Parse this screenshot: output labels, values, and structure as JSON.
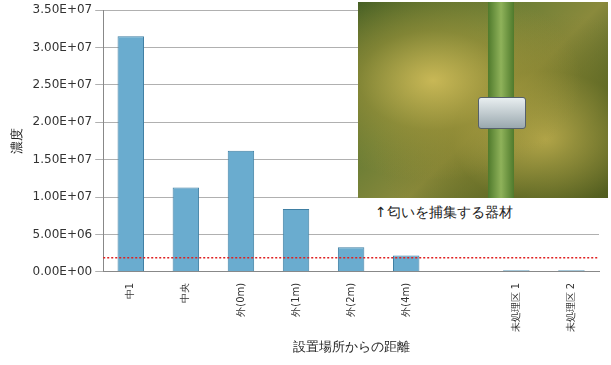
{
  "chart_data": {
    "type": "bar",
    "x_label": "設置場所からの距離",
    "y_label": "濃度",
    "annotation": "↑匂いを捕集する器材",
    "categories": [
      "中1",
      "中央",
      "外(0m)",
      "外(1m)",
      "外(2m)",
      "外(4m)",
      null,
      "未処理区 1",
      "未処理区 2"
    ],
    "values": [
      31500000,
      11300000,
      16200000,
      8400000,
      3300000,
      2200000,
      null,
      200000,
      200000
    ],
    "color": "#6aaccf",
    "reference_line": 1900000,
    "ylim": [
      0,
      35000000
    ],
    "yticks": [
      {
        "value": 0,
        "label": "0.00E+00"
      },
      {
        "value": 5000000,
        "label": "5.00E+06"
      },
      {
        "value": 10000000,
        "label": "1.00E+07"
      },
      {
        "value": 15000000,
        "label": "1.50E+07"
      },
      {
        "value": 20000000,
        "label": "2.00E+07"
      },
      {
        "value": 25000000,
        "label": "2.50E+07"
      },
      {
        "value": 30000000,
        "label": "3.00E+07"
      },
      {
        "value": 35000000,
        "label": "3.50E+07"
      }
    ],
    "grid": true
  }
}
